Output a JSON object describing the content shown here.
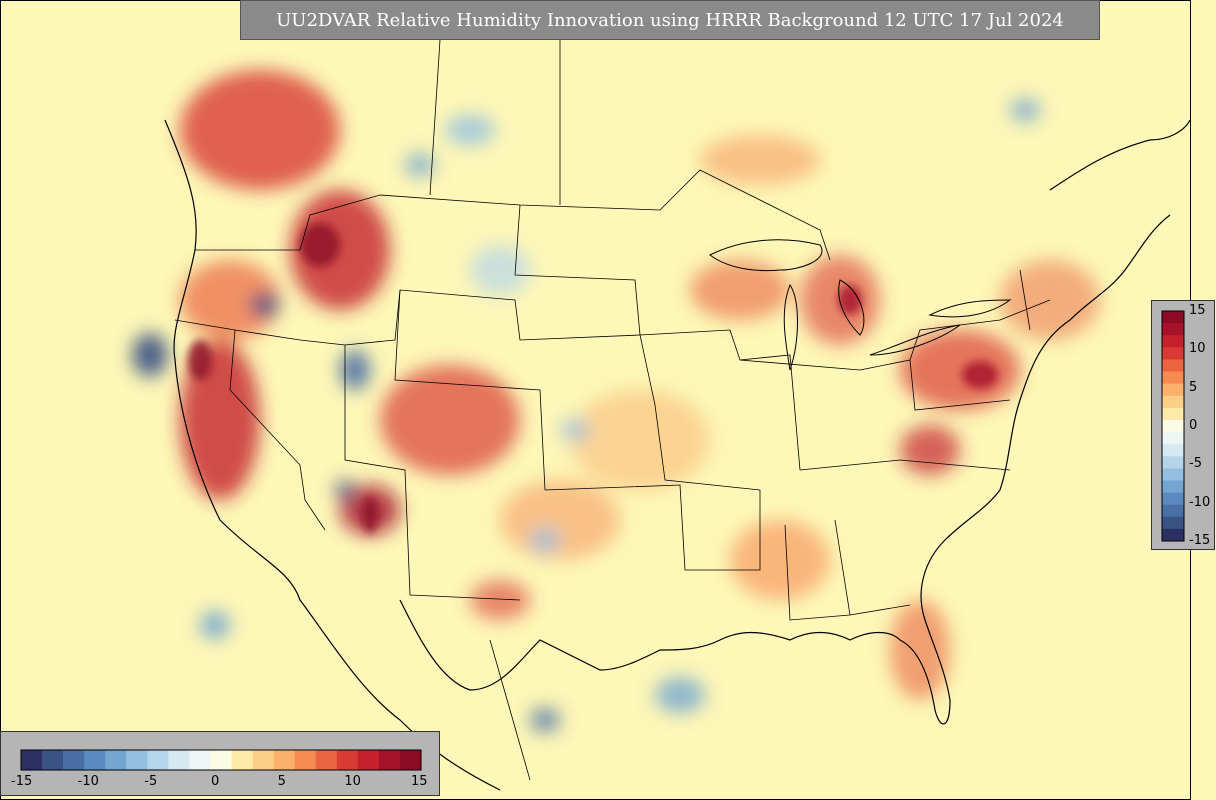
{
  "title": "UU2DVAR Relative Humidity Innovation using HRRR Background 12 UTC 17 Jul 2024",
  "colorbar": {
    "min": -15,
    "max": 15,
    "ticks_horizontal": [
      "-15",
      "-10",
      "-5",
      "0",
      "5",
      "10",
      "15"
    ],
    "ticks_vertical": [
      "15",
      "10",
      "5",
      "0",
      "-5",
      "-10",
      "-15"
    ],
    "colors": [
      "#2b2f63",
      "#3a5284",
      "#4a6fa5",
      "#5b8ac0",
      "#74a6d2",
      "#93bfe1",
      "#b5d5eb",
      "#d6e8f1",
      "#eef6f5",
      "#fbfbe6",
      "#fde9a8",
      "#fdcf86",
      "#fbb06c",
      "#f68b52",
      "#ea6440",
      "#d83b34",
      "#c4212d",
      "#a5122a",
      "#8b0a24"
    ]
  },
  "map_colors": {
    "background": "#fdf7b8",
    "border_line": "#000000"
  }
}
